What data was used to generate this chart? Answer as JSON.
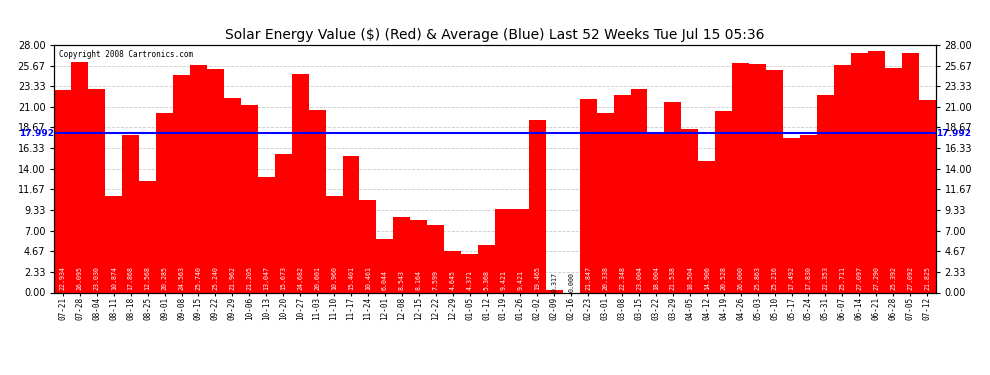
{
  "title": "Solar Energy Value ($) (Red) & Average (Blue) Last 52 Weeks Tue Jul 15 05:36",
  "copyright": "Copyright 2008 Cartronics.com",
  "average_value": 17.992,
  "bar_color": "#ff0000",
  "average_color": "#0000ff",
  "background_color": "#ffffff",
  "grid_color": "#cccccc",
  "ylim": [
    0,
    28.0
  ],
  "yticks": [
    0.0,
    2.33,
    4.67,
    7.0,
    9.33,
    11.67,
    14.0,
    16.33,
    18.67,
    21.0,
    23.33,
    25.67,
    28.0
  ],
  "categories": [
    "07-21",
    "07-28",
    "08-04",
    "08-11",
    "08-18",
    "08-25",
    "09-01",
    "09-08",
    "09-15",
    "09-22",
    "09-29",
    "10-06",
    "10-13",
    "10-20",
    "10-27",
    "11-03",
    "11-10",
    "11-17",
    "11-24",
    "12-01",
    "12-08",
    "12-15",
    "12-22",
    "12-29",
    "01-05",
    "01-12",
    "01-19",
    "01-26",
    "02-02",
    "02-09",
    "02-16",
    "02-23",
    "03-01",
    "03-08",
    "03-15",
    "03-22",
    "03-29",
    "04-05",
    "04-12",
    "04-19",
    "04-26",
    "05-03",
    "05-10",
    "05-17",
    "05-24",
    "05-31",
    "06-07",
    "06-14",
    "06-21",
    "06-28",
    "07-05",
    "07-12"
  ],
  "values": [
    22.934,
    26.095,
    23.03,
    10.874,
    17.868,
    12.568,
    20.285,
    24.563,
    25.74,
    25.24,
    21.962,
    21.205,
    13.047,
    15.673,
    24.682,
    20.601,
    10.96,
    15.401,
    10.461,
    6.044,
    8.543,
    8.164,
    7.599,
    4.645,
    4.371,
    5.368,
    9.421,
    9.421,
    19.465,
    0.317,
    0.0,
    21.847,
    20.338,
    22.348,
    23.004,
    18.004,
    21.538,
    18.504,
    14.906,
    20.528,
    26.0,
    25.863,
    25.216,
    17.492,
    17.83,
    22.353,
    25.711,
    27.097,
    27.29,
    25.392,
    27.092,
    21.825
  ],
  "label_fontsize": 4.8,
  "title_fontsize": 10,
  "tick_fontsize": 7.0,
  "xtick_fontsize": 5.5
}
